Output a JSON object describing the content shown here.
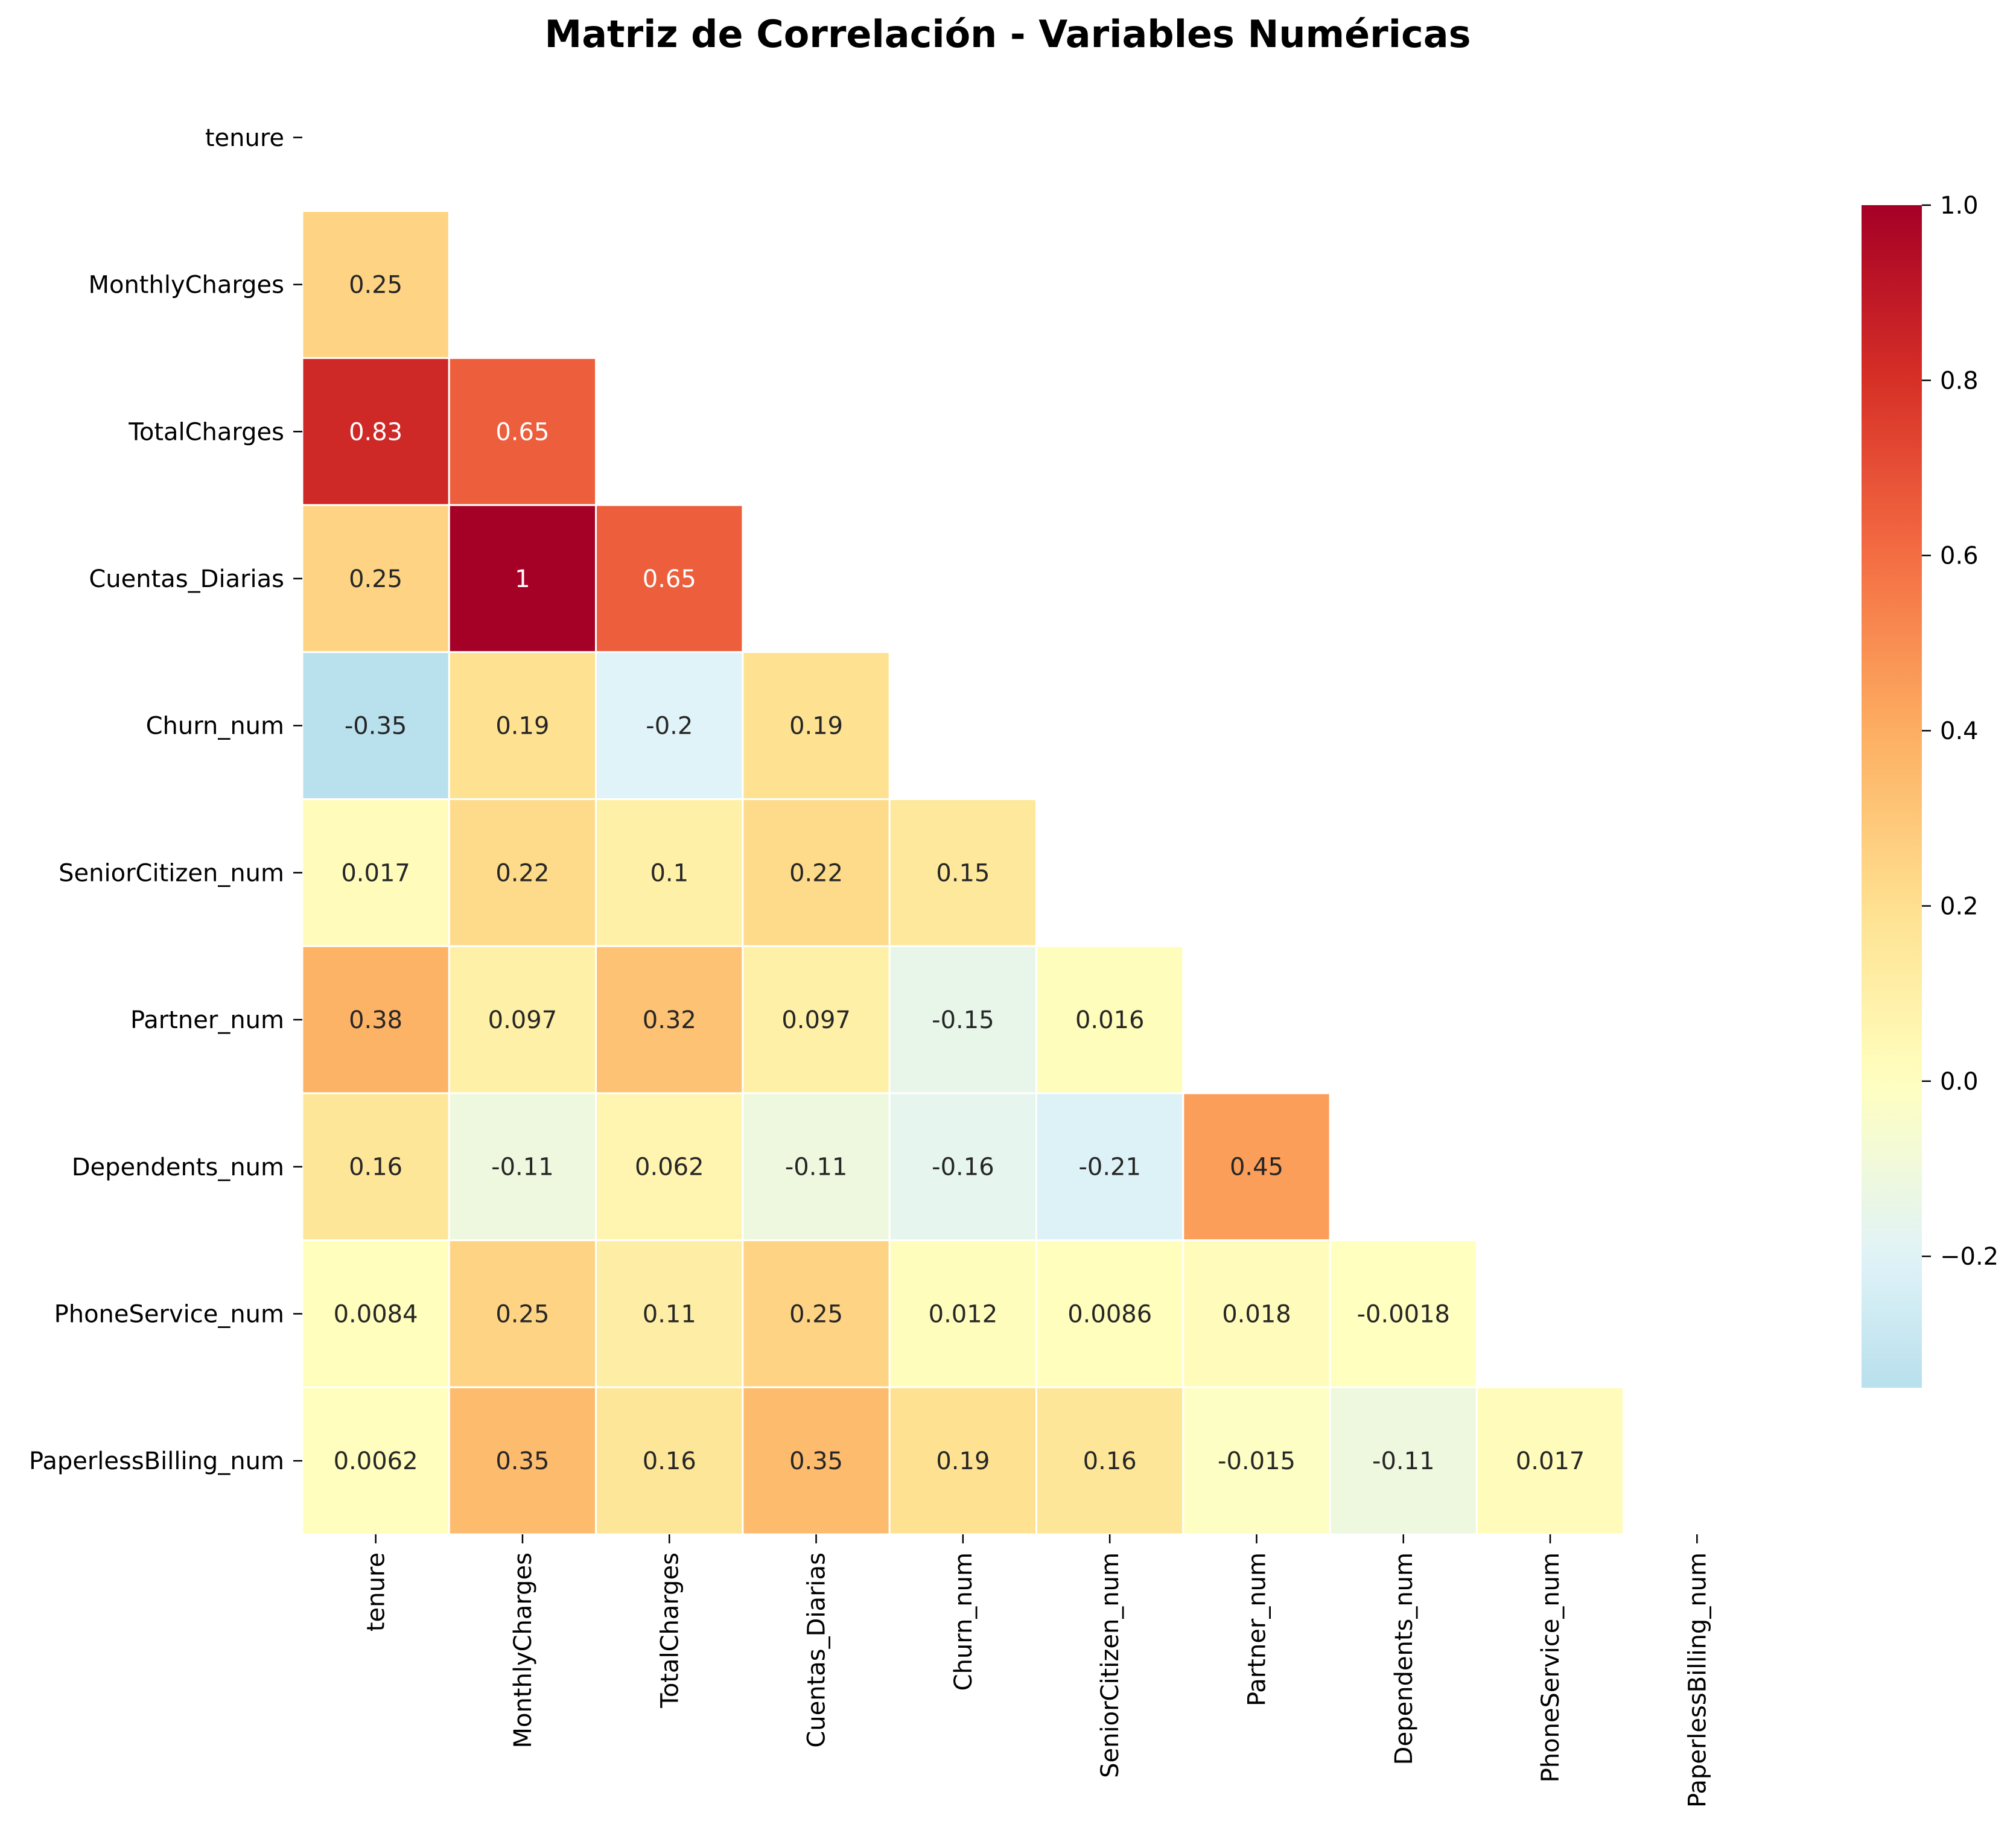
{
  "chart_data": {
    "type": "heatmap",
    "title": "Matriz de Correlación - Variables Numéricas",
    "mask": "upper-triangle-including-diagonal",
    "variables": [
      "tenure",
      "MonthlyCharges",
      "TotalCharges",
      "Cuentas_Diarias",
      "Churn_num",
      "SeniorCitizen_num",
      "Partner_num",
      "Dependents_num",
      "PhoneService_num",
      "PaperlessBilling_num"
    ],
    "cells": [
      {
        "row": 1,
        "col": 0,
        "value": 0.25,
        "label": "0.25"
      },
      {
        "row": 2,
        "col": 0,
        "value": 0.83,
        "label": "0.83"
      },
      {
        "row": 2,
        "col": 1,
        "value": 0.65,
        "label": "0.65"
      },
      {
        "row": 3,
        "col": 0,
        "value": 0.25,
        "label": "0.25"
      },
      {
        "row": 3,
        "col": 1,
        "value": 1.0,
        "label": "1"
      },
      {
        "row": 3,
        "col": 2,
        "value": 0.65,
        "label": "0.65"
      },
      {
        "row": 4,
        "col": 0,
        "value": -0.35,
        "label": "-0.35"
      },
      {
        "row": 4,
        "col": 1,
        "value": 0.19,
        "label": "0.19"
      },
      {
        "row": 4,
        "col": 2,
        "value": -0.2,
        "label": "-0.2"
      },
      {
        "row": 4,
        "col": 3,
        "value": 0.19,
        "label": "0.19"
      },
      {
        "row": 5,
        "col": 0,
        "value": 0.017,
        "label": "0.017"
      },
      {
        "row": 5,
        "col": 1,
        "value": 0.22,
        "label": "0.22"
      },
      {
        "row": 5,
        "col": 2,
        "value": 0.1,
        "label": "0.1"
      },
      {
        "row": 5,
        "col": 3,
        "value": 0.22,
        "label": "0.22"
      },
      {
        "row": 5,
        "col": 4,
        "value": 0.15,
        "label": "0.15"
      },
      {
        "row": 6,
        "col": 0,
        "value": 0.38,
        "label": "0.38"
      },
      {
        "row": 6,
        "col": 1,
        "value": 0.097,
        "label": "0.097"
      },
      {
        "row": 6,
        "col": 2,
        "value": 0.32,
        "label": "0.32"
      },
      {
        "row": 6,
        "col": 3,
        "value": 0.097,
        "label": "0.097"
      },
      {
        "row": 6,
        "col": 4,
        "value": -0.15,
        "label": "-0.15"
      },
      {
        "row": 6,
        "col": 5,
        "value": 0.016,
        "label": "0.016"
      },
      {
        "row": 7,
        "col": 0,
        "value": 0.16,
        "label": "0.16"
      },
      {
        "row": 7,
        "col": 1,
        "value": -0.11,
        "label": "-0.11"
      },
      {
        "row": 7,
        "col": 2,
        "value": 0.062,
        "label": "0.062"
      },
      {
        "row": 7,
        "col": 3,
        "value": -0.11,
        "label": "-0.11"
      },
      {
        "row": 7,
        "col": 4,
        "value": -0.16,
        "label": "-0.16"
      },
      {
        "row": 7,
        "col": 5,
        "value": -0.21,
        "label": "-0.21"
      },
      {
        "row": 7,
        "col": 6,
        "value": 0.45,
        "label": "0.45"
      },
      {
        "row": 8,
        "col": 0,
        "value": 0.0084,
        "label": "0.0084"
      },
      {
        "row": 8,
        "col": 1,
        "value": 0.25,
        "label": "0.25"
      },
      {
        "row": 8,
        "col": 2,
        "value": 0.11,
        "label": "0.11"
      },
      {
        "row": 8,
        "col": 3,
        "value": 0.25,
        "label": "0.25"
      },
      {
        "row": 8,
        "col": 4,
        "value": 0.012,
        "label": "0.012"
      },
      {
        "row": 8,
        "col": 5,
        "value": 0.0086,
        "label": "0.0086"
      },
      {
        "row": 8,
        "col": 6,
        "value": 0.018,
        "label": "0.018"
      },
      {
        "row": 8,
        "col": 7,
        "value": -0.0018,
        "label": "-0.0018"
      },
      {
        "row": 9,
        "col": 0,
        "value": 0.0062,
        "label": "0.0062"
      },
      {
        "row": 9,
        "col": 1,
        "value": 0.35,
        "label": "0.35"
      },
      {
        "row": 9,
        "col": 2,
        "value": 0.16,
        "label": "0.16"
      },
      {
        "row": 9,
        "col": 3,
        "value": 0.35,
        "label": "0.35"
      },
      {
        "row": 9,
        "col": 4,
        "value": 0.19,
        "label": "0.19"
      },
      {
        "row": 9,
        "col": 5,
        "value": 0.16,
        "label": "0.16"
      },
      {
        "row": 9,
        "col": 6,
        "value": -0.015,
        "label": "-0.015"
      },
      {
        "row": 9,
        "col": 7,
        "value": -0.11,
        "label": "-0.11"
      },
      {
        "row": 9,
        "col": 8,
        "value": 0.017,
        "label": "0.017"
      }
    ],
    "colormap": "RdYlBu_r",
    "center": 0.0,
    "vmin": -0.35,
    "vmax": 1.0,
    "colorbar": {
      "ticks": [
        1.0,
        0.8,
        0.6,
        0.4,
        0.2,
        0.0,
        -0.2
      ],
      "tick_labels": [
        "1.0",
        "0.8",
        "0.6",
        "0.4",
        "0.2",
        "0.0",
        "−0.2"
      ],
      "placement": "right"
    },
    "colors": {
      "cmap_stops": [
        "#313695",
        "#4575b4",
        "#74add1",
        "#abd9e9",
        "#e0f3f8",
        "#ffffbf",
        "#fee090",
        "#fdae61",
        "#f46d43",
        "#d73027",
        "#a50026"
      ],
      "grid_line": "#ffffff",
      "dark_text": "#262626",
      "light_text": "#ffffff"
    }
  }
}
